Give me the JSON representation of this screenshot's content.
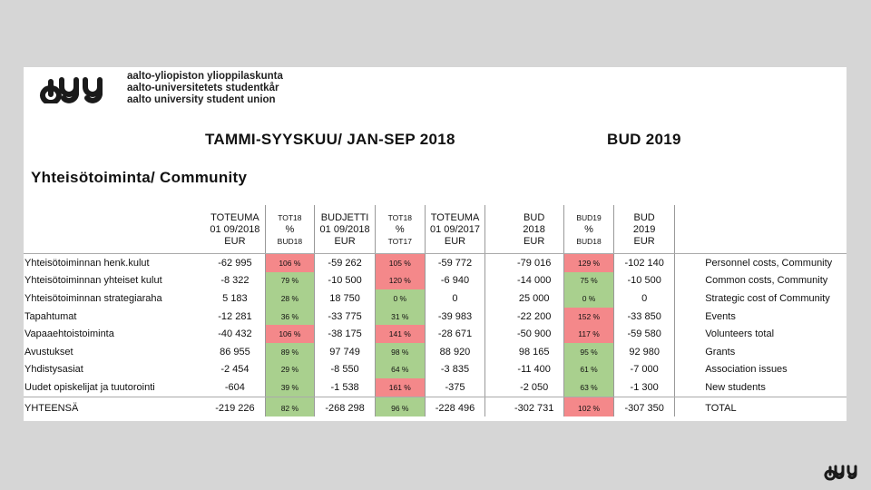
{
  "header": {
    "tagline": [
      "aalto-yliopiston ylioppilaskunta",
      "aalto-universitetets studentkår",
      "aalto university student union"
    ],
    "title_main": "TAMMI-SYYSKUU/ JAN-SEP 2018",
    "title_bud": "BUD 2019",
    "section": "Yhteisötoiminta/ Community"
  },
  "columns": [
    {
      "l1": "TOTEUMA",
      "l2": "01 09/2018",
      "l3": "EUR"
    },
    {
      "l1": "TOT18",
      "l2": "%",
      "l3": "BUD18"
    },
    {
      "l1": "BUDJETTI",
      "l2": "01 09/2018",
      "l3": "EUR"
    },
    {
      "l1": "TOT18",
      "l2": "%",
      "l3": "TOT17"
    },
    {
      "l1": "TOTEUMA",
      "l2": "01 09/2017",
      "l3": "EUR"
    },
    {
      "l1": "BUD",
      "l2": "2018",
      "l3": "EUR"
    },
    {
      "l1": "BUD19",
      "l2": "%",
      "l3": "BUD18"
    },
    {
      "l1": "BUD",
      "l2": "2019",
      "l3": "EUR"
    }
  ],
  "rows": [
    {
      "fi": "Yhteisötoiminnan henk.kulut",
      "v": [
        "-62 995",
        "106 %",
        "-59 262",
        "105 %",
        "-59 772",
        "-79 016",
        "129 %",
        "-102 140"
      ],
      "en": "Personnel costs, Community"
    },
    {
      "fi": "Yhteisötoiminnan yhteiset kulut",
      "v": [
        "-8 322",
        "79 %",
        "-10 500",
        "120 %",
        "-6 940",
        "-14 000",
        "75 %",
        "-10 500"
      ],
      "en": "Common costs, Community"
    },
    {
      "fi": "Yhteisötoiminnan strategiaraha",
      "v": [
        "5 183",
        "28 %",
        "18 750",
        "0 %",
        "0",
        "25 000",
        "0 %",
        "0"
      ],
      "en": "Strategic cost of Community"
    },
    {
      "fi": "Tapahtumat",
      "v": [
        "-12 281",
        "36 %",
        "-33 775",
        "31 %",
        "-39 983",
        "-22 200",
        "152 %",
        "-33 850"
      ],
      "en": "Events"
    },
    {
      "fi": "Vapaaehtoistoiminta",
      "v": [
        "-40 432",
        "106 %",
        "-38 175",
        "141 %",
        "-28 671",
        "-50 900",
        "117 %",
        "-59 580"
      ],
      "en": "Volunteers total"
    },
    {
      "fi": "Avustukset",
      "v": [
        "86 955",
        "89 %",
        "97 749",
        "98 %",
        "88 920",
        "98 165",
        "95 %",
        "92 980"
      ],
      "en": "Grants"
    },
    {
      "fi": "Yhdistysasiat",
      "v": [
        "-2 454",
        "29 %",
        "-8 550",
        "64 %",
        "-3 835",
        "-11 400",
        "61 %",
        "-7 000"
      ],
      "en": "Association issues"
    },
    {
      "fi": "Uudet opiskelijat ja tuutorointi",
      "v": [
        "-604",
        "39 %",
        "-1 538",
        "161 %",
        "-375",
        "-2 050",
        "63 %",
        "-1 300"
      ],
      "en": "New students"
    }
  ],
  "total": {
    "fi": "YHTEENSÄ",
    "v": [
      "-219 226",
      "82 %",
      "-268 298",
      "96 %",
      "-228 496",
      "-302 731",
      "102 %",
      "-307 350"
    ],
    "en": "TOTAL"
  },
  "colors": {
    "green": "#a9d08e",
    "red": "#f4888a"
  },
  "row_colors": [
    [
      "r",
      "r",
      "r"
    ],
    [
      "g",
      "r",
      "g"
    ],
    [
      "g",
      "g",
      "g"
    ],
    [
      "g",
      "g",
      "r"
    ],
    [
      "r",
      "r",
      "r"
    ],
    [
      "g",
      "g",
      "g"
    ],
    [
      "g",
      "g",
      "g"
    ],
    [
      "g",
      "r",
      "g"
    ]
  ],
  "total_colors": [
    "g",
    "g",
    "r"
  ],
  "icons": {
    "logo": "ayy-logo",
    "corner": "ayy-logo-small"
  }
}
